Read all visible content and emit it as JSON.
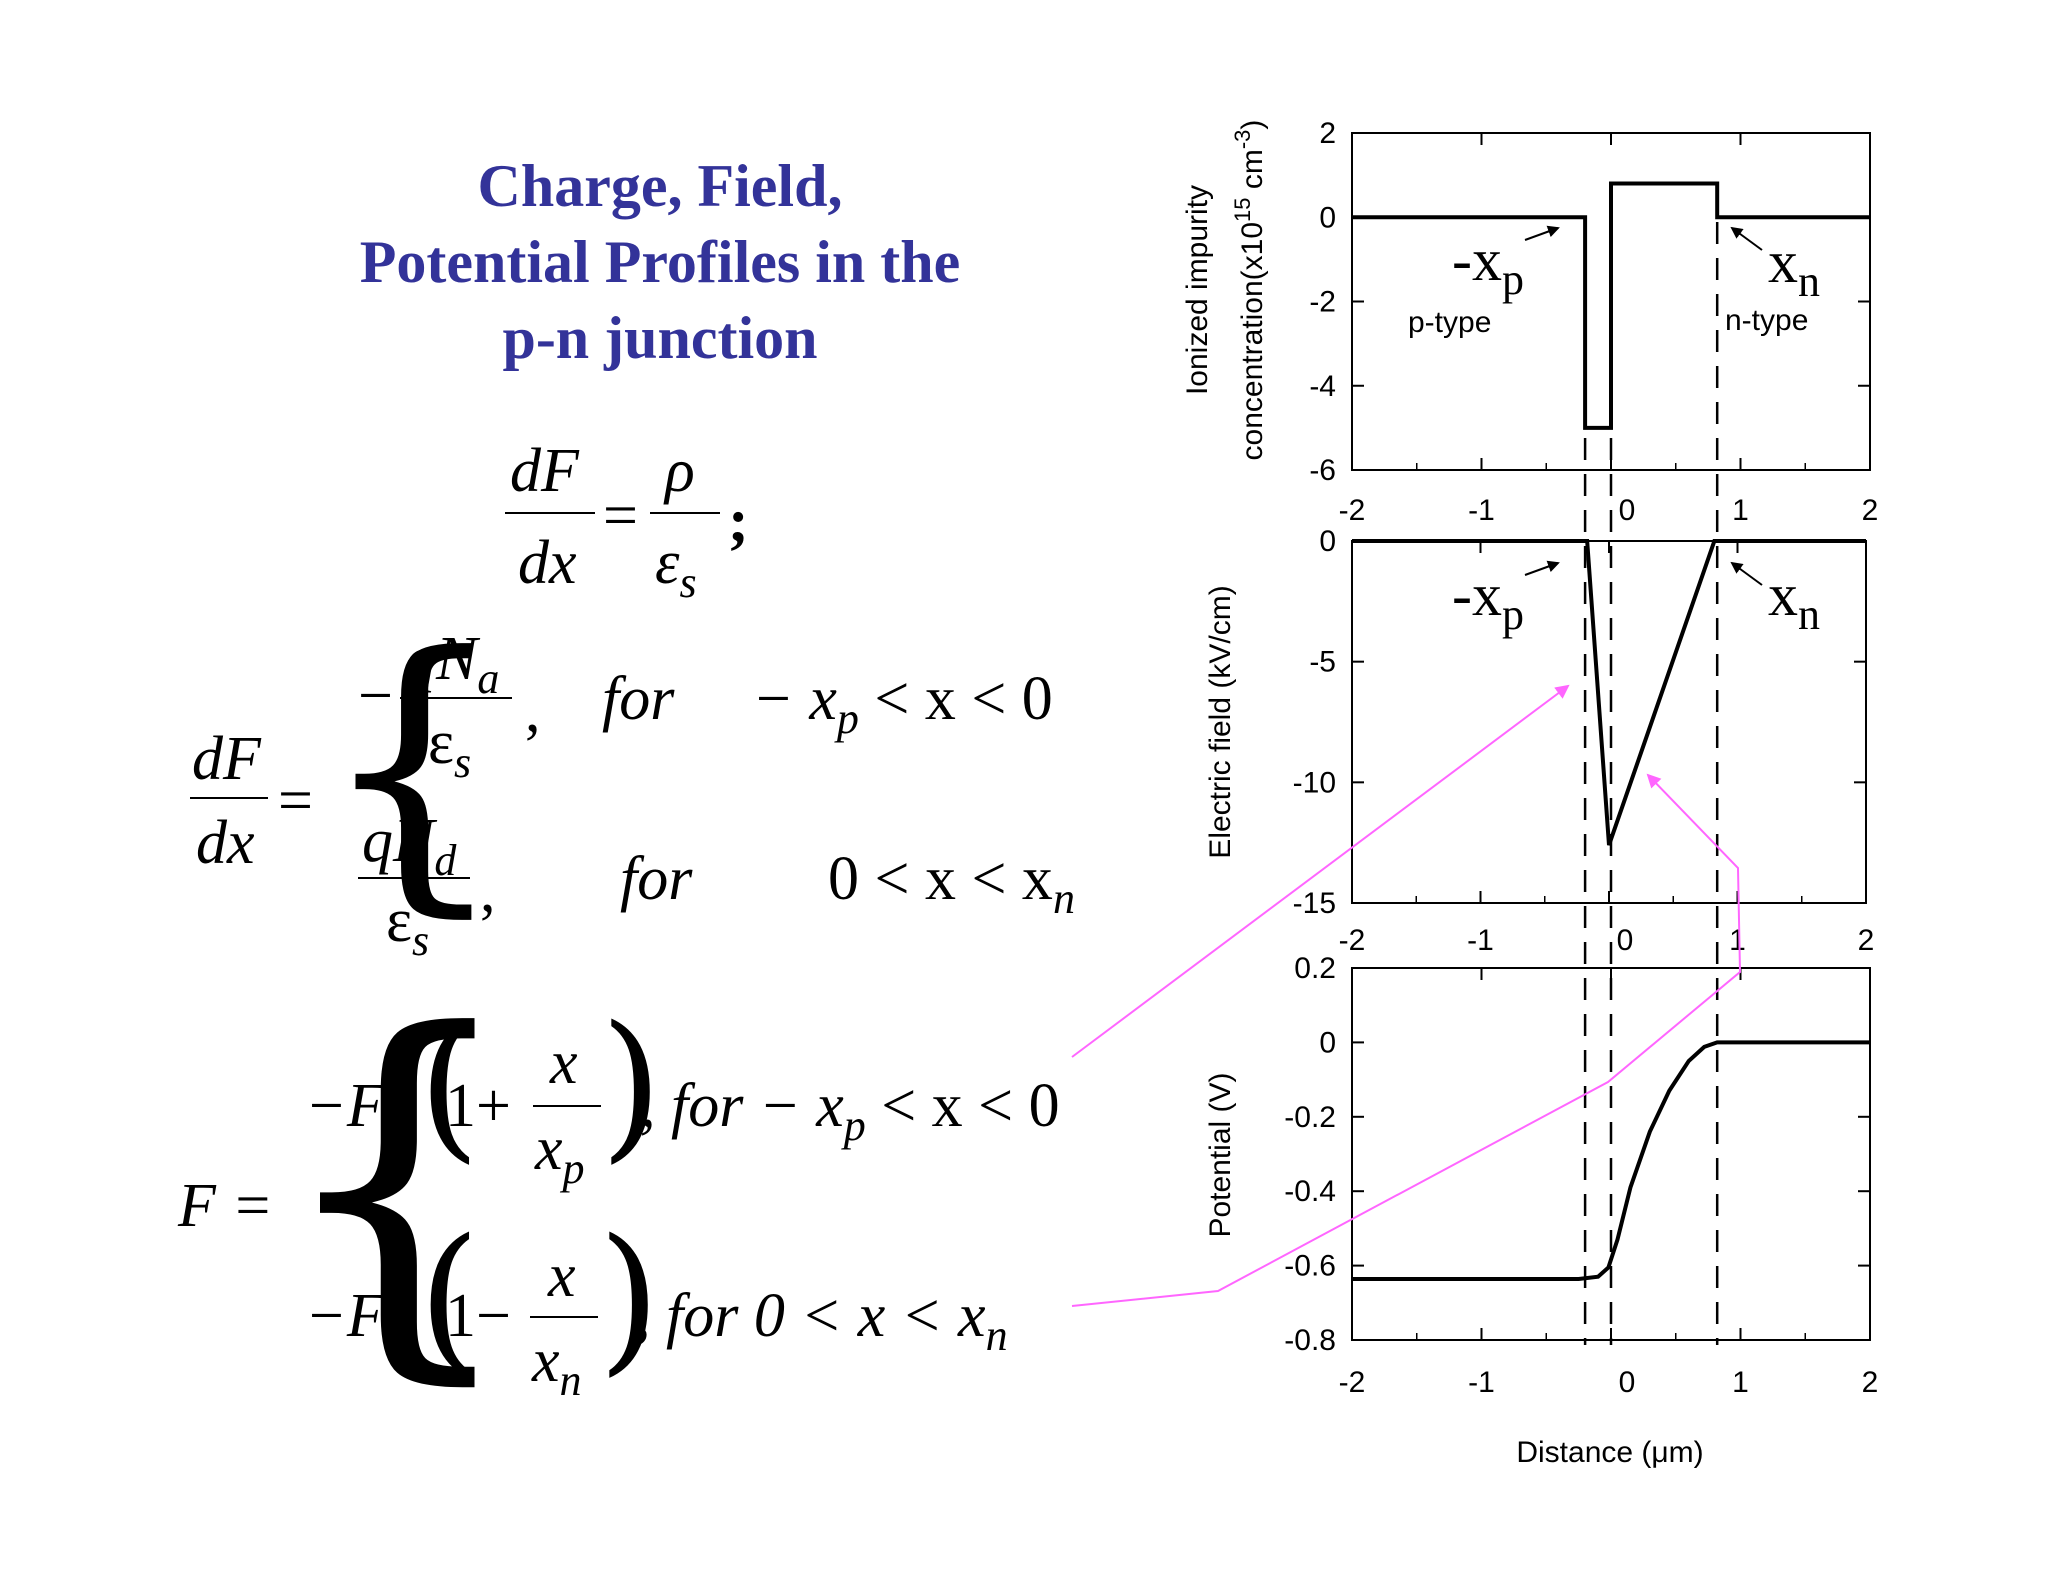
{
  "title": {
    "line1": "Charge, Field,",
    "line2": "Potential Profiles in the",
    "line3": "p-n junction"
  },
  "equations": {
    "poisson": {
      "numerator_left": "dF",
      "denominator_left": "dx",
      "equals": "=",
      "numerator_right": "ρ",
      "denominator_right": "ε",
      "denominator_right_sub": "s",
      "terminator": ";"
    },
    "dFdx": {
      "lhs_num": "dF",
      "lhs_den": "dx",
      "equals": "=",
      "case1": {
        "minus": "−",
        "num": "qN",
        "num_sub": "a",
        "den": "ε",
        "den_sub": "s",
        "comma": ",",
        "for": "for",
        "cond_pre": "− x",
        "cond_sub": "p",
        "cond_post": " < x < 0"
      },
      "case2": {
        "num": "qN",
        "num_sub": "d",
        "den": "ε",
        "den_sub": "s",
        "comma": ",",
        "for": "for",
        "cond_pre": "0 < x < x",
        "cond_sub": "n"
      }
    },
    "F": {
      "lhs": "F =",
      "case1": {
        "pre": "−F",
        "pre_sub": "m",
        "one": "1+",
        "num": "x",
        "den": "x",
        "den_sub": "p",
        "tail_pre": ", for − x",
        "tail_sub": "p",
        "tail_post": " < x < 0"
      },
      "case2": {
        "pre": "−F",
        "pre_sub": "m",
        "one": "1−",
        "num": "x",
        "den": "x",
        "den_sub": "n",
        "tail_pre": ", for   0 < x < x",
        "tail_sub": "n"
      }
    }
  },
  "chart_data": [
    {
      "type": "line",
      "ylabel_line1": "Ionized impurity",
      "ylabel_line2": "concentration(x10",
      "ylabel_sup1": "15",
      "ylabel_mid": " cm",
      "ylabel_sup2": "-3",
      "ylabel_end": ")",
      "xlim": [
        -2,
        2
      ],
      "ylim": [
        -6,
        2
      ],
      "xticks": [
        "-2",
        "-1",
        "0",
        "1",
        "2"
      ],
      "yticks": [
        "2",
        "0",
        "-2",
        "-4",
        "-6"
      ],
      "ytick_values": [
        2,
        0,
        -2,
        -4,
        -6
      ],
      "series": [
        {
          "x": [
            -2,
            -0.2,
            -0.2,
            0,
            0,
            0.82,
            0.82,
            2
          ],
          "y": [
            0,
            0,
            -5,
            -5,
            0.8,
            0.8,
            0,
            0
          ]
        }
      ],
      "annotations": {
        "xp_main": "-x",
        "xp_sub": "p",
        "xn_main": "x",
        "xn_sub": "n",
        "p_type": "p-type",
        "n_type": "n-type"
      }
    },
    {
      "type": "line",
      "ylabel": "Electric field (kV/cm)",
      "xlim": [
        -2,
        2
      ],
      "ylim": [
        -15,
        0
      ],
      "xticks": [
        "-2",
        "-1",
        "0",
        "1",
        "2"
      ],
      "yticks": [
        "0",
        "-5",
        "-10",
        "-15"
      ],
      "ytick_values": [
        0,
        -5,
        -10,
        -15
      ],
      "series": [
        {
          "x": [
            -2,
            -0.17,
            0,
            0.82,
            2
          ],
          "y": [
            0,
            0,
            -12.6,
            0,
            0
          ]
        }
      ],
      "annotations": {
        "xp_main": "-x",
        "xp_sub": "p",
        "xn_main": "x",
        "xn_sub": "n"
      }
    },
    {
      "type": "line",
      "ylabel": "Potential (V)",
      "xlabel": "Distance (μm)",
      "xlim": [
        -2,
        2
      ],
      "ylim": [
        -0.8,
        0.2
      ],
      "xticks": [
        "-2",
        "-1",
        "0",
        "1",
        "2"
      ],
      "yticks": [
        "0.2",
        "0",
        "-0.2",
        "-0.4",
        "-0.6",
        "-0.8"
      ],
      "ytick_values": [
        0.2,
        0,
        -0.2,
        -0.4,
        -0.6,
        -0.8
      ],
      "series": [
        {
          "x": [
            -2,
            -0.25,
            -0.1,
            -0.02,
            0.05,
            0.15,
            0.3,
            0.45,
            0.6,
            0.72,
            0.82,
            2
          ],
          "y": [
            -0.636,
            -0.636,
            -0.63,
            -0.605,
            -0.53,
            -0.39,
            -0.24,
            -0.13,
            -0.05,
            -0.012,
            0,
            0
          ]
        }
      ]
    }
  ],
  "colors": {
    "title": "#333399",
    "arrows": "#ff66ff",
    "lines": "#000000"
  }
}
